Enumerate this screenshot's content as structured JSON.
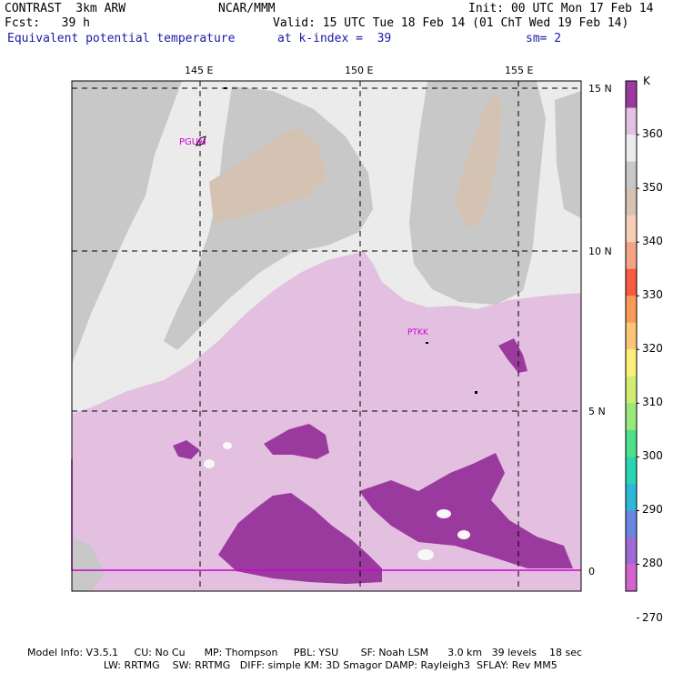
{
  "header": {
    "left1": "CONTRAST  3km ARW",
    "center1": "NCAR/MMM",
    "right1": "Init: 00 UTC Mon 17 Feb 14",
    "left2": "Fcst:   39 h",
    "right2": "Valid: 15 UTC Tue 18 Feb 14 (01 ChT Wed 19 Feb 14)",
    "field": "Equivalent potential temperature",
    "kindex": "at k-index =  39",
    "smooth": "sm= 2"
  },
  "map": {
    "lon_labels": [
      "145 E",
      "150 E",
      "155 E"
    ],
    "lat_labels": [
      "15 N",
      "10 N",
      "5 N",
      "0"
    ],
    "stations": [
      "PGUM",
      "PTKK"
    ]
  },
  "legend": {
    "unit": "K",
    "labels": [
      "360",
      "350",
      "340",
      "330",
      "320",
      "310",
      "300",
      "290",
      "280",
      "270"
    ],
    "colors": [
      "#9b3a9e",
      "#e3bfe0",
      "#ebebeb",
      "#c8c8c8",
      "#d4c2b3",
      "#f6cdb5",
      "#f4a484",
      "#fa5a40",
      "#f99a58",
      "#fbc676",
      "#fcf07a",
      "#d2ec72",
      "#98e87a",
      "#4ee08c",
      "#2ad6b0",
      "#2eb8d8",
      "#6a84e2",
      "#a06ad6",
      "#d264cc"
    ]
  },
  "footer": {
    "line1": "Model Info: V3.5.1     CU: No Cu      MP: Thompson     PBL: YSU       SF: Noah LSM      3.0 km   39 levels    18 sec",
    "line2": "                        LW: RRTMG    SW: RRTMG   DIFF: simple KM: 3D Smagor DAMP: Rayleigh3  SFLAY: Rev MM5"
  }
}
